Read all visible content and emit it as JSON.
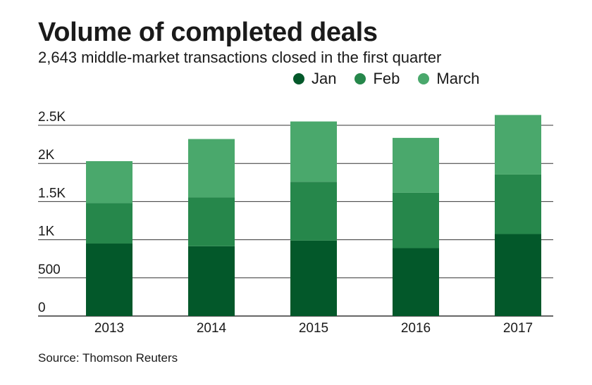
{
  "title": "Volume of completed deals",
  "subtitle": "2,643 middle-market transactions closed in the first quarter",
  "source": "Source: Thomson Reuters",
  "colors": {
    "Jan": "#03582a",
    "Feb": "#26874b",
    "March": "#4aa86c",
    "grid": "#333333"
  },
  "chart_data": {
    "type": "bar",
    "stacked": true,
    "title": "Volume of completed deals",
    "subtitle": "2,643 middle-market transactions closed in the first quarter",
    "categories": [
      "2013",
      "2014",
      "2015",
      "2016",
      "2017"
    ],
    "series": [
      {
        "name": "Jan",
        "values": [
          950,
          915,
          990,
          890,
          1075
        ]
      },
      {
        "name": "Feb",
        "values": [
          530,
          640,
          770,
          725,
          780
        ]
      },
      {
        "name": "March",
        "values": [
          550,
          765,
          790,
          720,
          780
        ]
      }
    ],
    "ylim": [
      0,
      2500
    ],
    "yticks": [
      0,
      500,
      1000,
      1500,
      2000,
      2500
    ],
    "ytick_labels": [
      "0",
      "500",
      "1K",
      "1.5K",
      "2K",
      "2.5K"
    ],
    "legend": "top-right",
    "grid": true
  }
}
